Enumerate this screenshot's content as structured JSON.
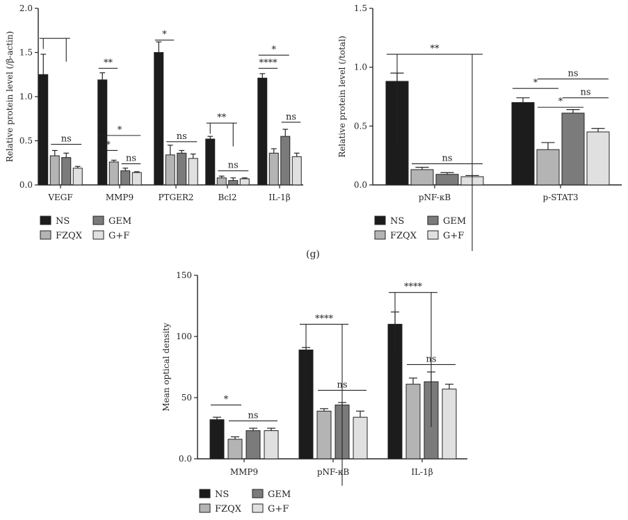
{
  "panel_label": "(g)",
  "colors": {
    "NS": "#1c1c1c",
    "FZQX": "#b4b4b4",
    "GEM": "#7b7b7b",
    "G+F": "#e0e0e0"
  },
  "chart_data": [
    {
      "type": "bar",
      "ylabel": "Relative protein level (/β-actin)",
      "ylim": [
        0,
        2.0
      ],
      "yticks": [
        "0.0",
        "0.5",
        "1.0",
        "1.5",
        "2.0"
      ],
      "categories": [
        "VEGF",
        "MMP9",
        "PTGER2",
        "Bcl2",
        "IL-1β"
      ],
      "series": [
        {
          "name": "NS",
          "values": [
            1.25,
            1.19,
            1.5,
            0.52,
            1.21
          ],
          "errors": [
            0.23,
            0.08,
            0.12,
            0.03,
            0.05
          ]
        },
        {
          "name": "FZQX",
          "values": [
            0.33,
            0.26,
            0.34,
            0.08,
            0.36
          ],
          "errors": [
            0.06,
            0.02,
            0.11,
            0.02,
            0.05
          ]
        },
        {
          "name": "GEM",
          "values": [
            0.31,
            0.16,
            0.36,
            0.05,
            0.55
          ],
          "errors": [
            0.05,
            0.03,
            0.03,
            0.03,
            0.08
          ]
        },
        {
          "name": "G+F",
          "values": [
            0.19,
            0.14,
            0.3,
            0.07,
            0.32
          ],
          "errors": [
            0.02,
            0.01,
            0.05,
            0.01,
            0.04
          ]
        }
      ],
      "annotations": [
        {
          "group": 0,
          "from": 0,
          "to": 2,
          "y": 1.66,
          "label": "",
          "drop": 0.12
        },
        {
          "group": 0,
          "from": 1,
          "to": 3,
          "y": 0.46,
          "label": "ns"
        },
        {
          "group": 1,
          "from": 0,
          "to": 1,
          "y": 1.32,
          "label": "**"
        },
        {
          "group": 1,
          "from": 0,
          "to": 3,
          "y": 0.56,
          "label": "*"
        },
        {
          "group": 1,
          "from": 0,
          "to": 1,
          "y": 0.39,
          "label": "*"
        },
        {
          "group": 1,
          "from": 2,
          "to": 3,
          "y": 0.24,
          "label": "ns"
        },
        {
          "group": 2,
          "from": 0,
          "to": 1,
          "y": 1.64,
          "label": "*"
        },
        {
          "group": 2,
          "from": 1,
          "to": 3,
          "y": 0.49,
          "label": "ns"
        },
        {
          "group": 3,
          "from": 0,
          "to": 2,
          "y": 0.7,
          "label": "**",
          "drop": 0.12
        },
        {
          "group": 3,
          "from": 1,
          "to": 3,
          "y": 0.16,
          "label": "ns"
        },
        {
          "group": 4,
          "from": 0,
          "to": 2,
          "y": 1.47,
          "label": "*"
        },
        {
          "group": 4,
          "from": 0,
          "to": 1,
          "y": 1.32,
          "label": "****"
        },
        {
          "group": 4,
          "from": 2,
          "to": 3,
          "y": 0.71,
          "label": "ns"
        }
      ]
    },
    {
      "type": "bar",
      "ylabel": "Relative protein level (/total)",
      "ylim": [
        0,
        1.5
      ],
      "yticks": [
        "0.0",
        "0.5",
        "1.0",
        "1.5"
      ],
      "categories": [
        "pNF-κB",
        "p-STAT3"
      ],
      "series": [
        {
          "name": "NS",
          "values": [
            0.88,
            0.7
          ],
          "errors": [
            0.07,
            0.04
          ]
        },
        {
          "name": "FZQX",
          "values": [
            0.13,
            0.3
          ],
          "errors": [
            0.02,
            0.06
          ]
        },
        {
          "name": "GEM",
          "values": [
            0.09,
            0.61
          ],
          "errors": [
            0.015,
            0.03
          ]
        },
        {
          "name": "G+F",
          "values": [
            0.07,
            0.45
          ],
          "errors": [
            0.01,
            0.03
          ]
        }
      ],
      "annotations": [
        {
          "group": 0,
          "from": 0,
          "to": 3,
          "y": 1.11,
          "label": "**",
          "drop": 0.76
        },
        {
          "group": 0,
          "from": 1,
          "to": 3,
          "y": 0.18,
          "label": "ns"
        },
        {
          "group": 1,
          "from": 0,
          "to": 1,
          "y": 0.82,
          "label": "*"
        },
        {
          "group": 1,
          "from": 1,
          "to": 3,
          "y": 0.9,
          "label": "ns"
        },
        {
          "group": 1,
          "from": 1,
          "to": 2,
          "y": 0.66,
          "label": "*"
        },
        {
          "group": 1,
          "from": 2,
          "to": 3,
          "y": 0.74,
          "label": "ns"
        }
      ]
    },
    {
      "type": "bar",
      "ylabel": "Mean optical density",
      "ylim": [
        0,
        150
      ],
      "yticks": [
        "0.0",
        "50",
        "100",
        "150"
      ],
      "categories": [
        "MMP9",
        "pNF-κB",
        "IL-1β"
      ],
      "series": [
        {
          "name": "NS",
          "values": [
            32,
            89,
            110
          ],
          "errors": [
            2,
            2,
            10
          ]
        },
        {
          "name": "FZQX",
          "values": [
            16,
            39,
            61
          ],
          "errors": [
            2,
            2,
            5
          ]
        },
        {
          "name": "GEM",
          "values": [
            23,
            44,
            63
          ],
          "errors": [
            2,
            2,
            8
          ]
        },
        {
          "name": "G+F",
          "values": [
            23,
            34,
            57
          ],
          "errors": [
            2,
            5,
            4
          ]
        }
      ],
      "annotations": [
        {
          "group": 0,
          "from": 0,
          "to": 1,
          "y": 44,
          "label": "*"
        },
        {
          "group": 0,
          "from": 1,
          "to": 3,
          "y": 31,
          "label": "ns"
        },
        {
          "group": 1,
          "from": 0,
          "to": 2,
          "y": 110,
          "label": "****",
          "drop": 60
        },
        {
          "group": 1,
          "from": 1,
          "to": 3,
          "y": 56,
          "label": "ns"
        },
        {
          "group": 2,
          "from": 0,
          "to": 2,
          "y": 136,
          "label": "****",
          "drop": 50
        },
        {
          "group": 2,
          "from": 1,
          "to": 3,
          "y": 77,
          "label": "ns"
        }
      ]
    }
  ],
  "legend": [
    "NS",
    "GEM",
    "FZQX",
    "G+F"
  ]
}
